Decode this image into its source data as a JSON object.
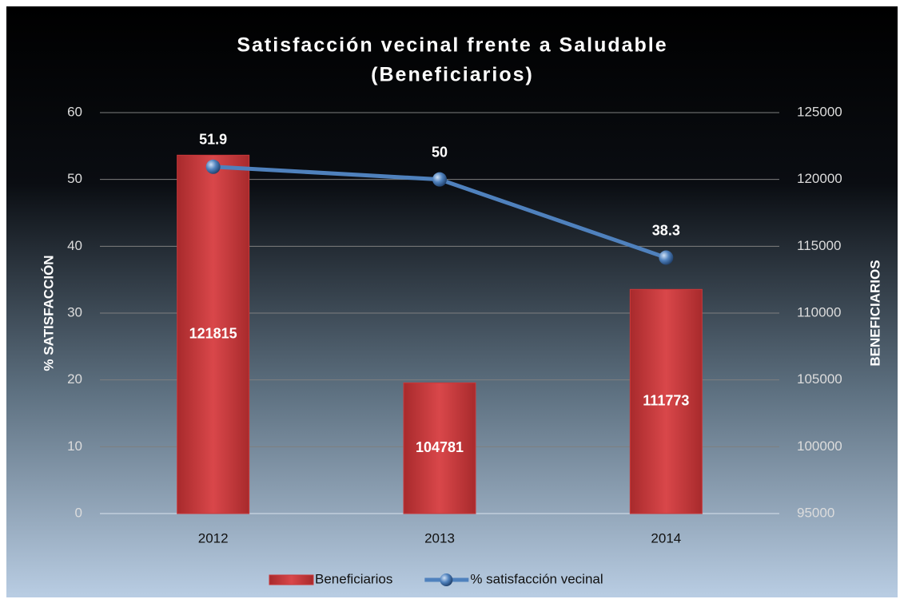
{
  "chart_data": {
    "type": "combo",
    "title": [
      "Satisfacción vecinal frente a Saludable",
      "(Beneficiarios)"
    ],
    "y_label": "% SATISFACCIÓN",
    "y2_label": "BENEFICIARIOS",
    "categories": [
      "2012",
      "2013",
      "2014"
    ],
    "series": [
      {
        "name": "Beneficiarios",
        "type": "bar",
        "axis": "y2",
        "color": "#c9383a",
        "values": [
          121815,
          104781,
          111773
        ]
      },
      {
        "name": "% satisfacción vecinal",
        "type": "line",
        "axis": "y",
        "color": "#4f81bd",
        "values": [
          51.9,
          50,
          38.3
        ]
      }
    ],
    "ylim": [
      0,
      60
    ],
    "yticks": [
      0,
      10,
      20,
      30,
      40,
      50,
      60
    ],
    "y2lim": [
      95000,
      125000
    ],
    "y2ticks": [
      95000,
      100000,
      105000,
      110000,
      115000,
      120000,
      125000
    ],
    "grid": true,
    "legend": "bottom"
  }
}
